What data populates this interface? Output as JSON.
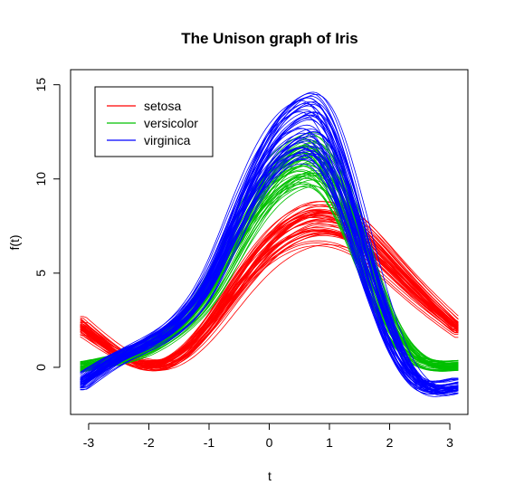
{
  "chart_data": {
    "type": "line",
    "title": "The Unison graph of Iris",
    "xlabel": "t",
    "ylabel": "f(t)",
    "xlim": [
      -3.3,
      3.3
    ],
    "ylim": [
      -2.5,
      15.8
    ],
    "x_ticks": [
      "-3",
      "-2",
      "-1",
      "0",
      "1",
      "2",
      "3"
    ],
    "y_ticks": [
      "0",
      "5",
      "10",
      "15"
    ],
    "grid": false,
    "legend_position": "top-left",
    "x": [
      -3.14,
      -2.5,
      -2.0,
      -1.5,
      -1.0,
      -0.5,
      0.0,
      0.5,
      0.7,
      1.0,
      1.5,
      2.0,
      2.5,
      3.14
    ],
    "series": [
      {
        "name": "setosa",
        "color": "#ff0000",
        "values": [
          2.2,
          0.7,
          0.1,
          0.6,
          2.2,
          4.4,
          6.3,
          7.4,
          7.6,
          7.6,
          6.9,
          5.4,
          3.8,
          2.0
        ],
        "bundle_count": 50
      },
      {
        "name": "versicolor",
        "color": "#00c000",
        "values": [
          0.0,
          0.4,
          1.0,
          2.1,
          3.9,
          6.8,
          9.4,
          10.7,
          10.8,
          10.0,
          6.4,
          2.4,
          0.4,
          0.1
        ],
        "bundle_count": 50
      },
      {
        "name": "virginica",
        "color": "#0000ff",
        "values": [
          -0.9,
          0.5,
          1.3,
          2.4,
          4.5,
          8.0,
          11.1,
          12.6,
          12.7,
          11.6,
          6.9,
          1.9,
          -0.8,
          -1.0
        ],
        "bundle_count": 50
      }
    ]
  }
}
